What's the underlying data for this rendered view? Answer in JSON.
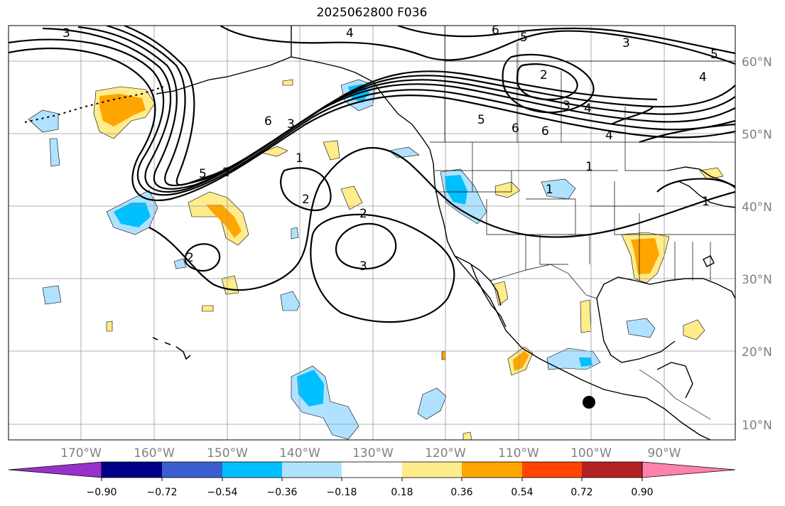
{
  "title": "2025062800 F036",
  "map": {
    "lat_labels": [
      "60°N",
      "50°N",
      "40°N",
      "30°N",
      "20°N",
      "10°N"
    ],
    "lon_labels": [
      "170°W",
      "160°W",
      "150°W",
      "140°W",
      "130°W",
      "120°W",
      "110°W",
      "100°W",
      "90°W"
    ],
    "contour_labels": [
      "1",
      "2",
      "3",
      "4",
      "5",
      "6"
    ]
  },
  "colorbar": {
    "tick_labels": [
      "−0.90",
      "−0.72",
      "−0.54",
      "−0.36",
      "−0.18",
      "0.18",
      "0.36",
      "0.54",
      "0.72",
      "0.90"
    ],
    "colors": [
      "#9932cc",
      "#00008b",
      "#3a5fcd",
      "#00bfff",
      "#b0e2ff",
      "#ffffff",
      "#ffec8b",
      "#ffa500",
      "#ff4500",
      "#b22222",
      "#ff82ab"
    ]
  },
  "colors": {
    "neg_light": "#b0e2ff",
    "neg_mid": "#00bfff",
    "pos_light": "#ffec8b",
    "pos_mid": "#ffa500",
    "grid": "#999999",
    "contour": "#000000"
  }
}
